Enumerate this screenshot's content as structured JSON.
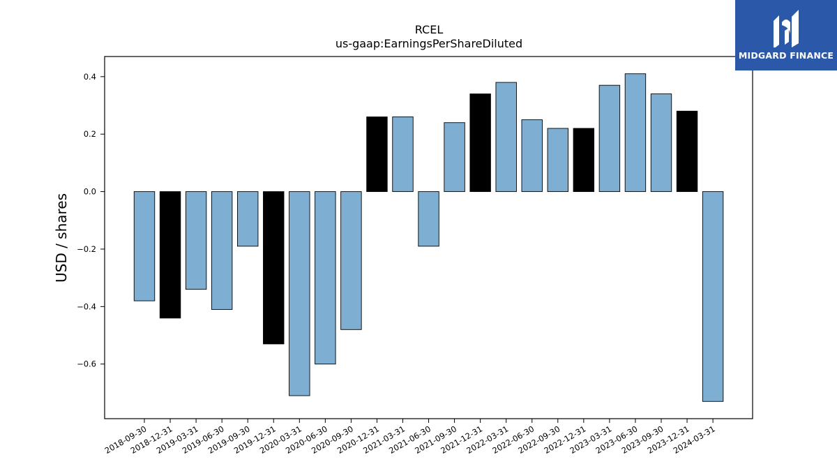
{
  "logo": {
    "text": "MIDGARD FINANCE",
    "icon": "midgard-logo-icon",
    "background": "#2b58a8"
  },
  "chart_data": {
    "type": "bar",
    "title": "RCEL",
    "subtitle": "us-gaap:EarningsPerShareDiluted",
    "xlabel": "",
    "ylabel": "USD / shares",
    "ylim": [
      -0.79,
      0.47
    ],
    "yticks": [
      -0.6,
      -0.4,
      -0.2,
      0.0,
      0.2,
      0.4
    ],
    "ytick_labels": [
      "−0.6",
      "−0.4",
      "−0.2",
      "0.0",
      "0.2",
      "0.4"
    ],
    "grid": false,
    "colors": {
      "quarter": "#7eafd3",
      "year_end": "#000000",
      "edge": "#000000"
    },
    "categories": [
      "2018-09-30",
      "2018-12-31",
      "2019-03-31",
      "2019-06-30",
      "2019-09-30",
      "2019-12-31",
      "2020-03-31",
      "2020-06-30",
      "2020-09-30",
      "2020-12-31",
      "2021-03-31",
      "2021-06-30",
      "2021-09-30",
      "2021-12-31",
      "2022-03-31",
      "2022-06-30",
      "2022-09-30",
      "2022-12-31",
      "2023-03-31",
      "2023-06-30",
      "2023-09-30",
      "2023-12-31",
      "2024-03-31"
    ],
    "values": [
      -0.38,
      -0.44,
      -0.34,
      -0.41,
      -0.19,
      -0.53,
      -0.71,
      -0.6,
      -0.48,
      0.26,
      0.26,
      -0.19,
      0.24,
      0.34,
      0.38,
      0.25,
      0.22,
      0.22,
      0.37,
      0.41,
      0.34,
      0.28,
      -0.73
    ],
    "highlight": [
      false,
      true,
      false,
      false,
      false,
      true,
      false,
      false,
      false,
      true,
      false,
      false,
      false,
      true,
      false,
      false,
      false,
      true,
      false,
      false,
      false,
      true,
      false
    ]
  }
}
